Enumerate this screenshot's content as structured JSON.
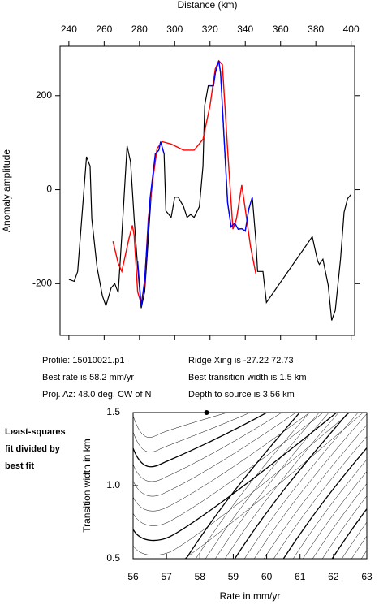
{
  "chart_data": [
    {
      "type": "line",
      "xlabel": "Distance (km)",
      "ylabel": "Anomaly amplitude",
      "xlim": [
        235,
        402
      ],
      "xticks": [
        240,
        260,
        280,
        300,
        320,
        340,
        360,
        380,
        400
      ],
      "ylim": [
        -310,
        305
      ],
      "yticks": [
        -200,
        0,
        200
      ],
      "series": [
        {
          "color": "#000000",
          "x": [
            240,
            243,
            245,
            250,
            252,
            253,
            256,
            259,
            261,
            264,
            266,
            268,
            270,
            273,
            275,
            277,
            279,
            281,
            283,
            285,
            287,
            289,
            291,
            292,
            294,
            295,
            298,
            300,
            302,
            305,
            307,
            309,
            311,
            314,
            316,
            317,
            319,
            322,
            323,
            325,
            326,
            328,
            330,
            332,
            334,
            336,
            338,
            340,
            342,
            344,
            346,
            347,
            350,
            352,
            378,
            381,
            382,
            384,
            387,
            389,
            391,
            394,
            396,
            398,
            400
          ],
          "values": [
            -191,
            -195,
            -174,
            70,
            50,
            -62,
            -165,
            -226,
            -247,
            -209,
            -200,
            -219,
            -97,
            93,
            59,
            -62,
            -165,
            -252,
            -217,
            -105,
            7,
            76,
            84,
            102,
            76,
            -45,
            -59,
            -16,
            -16,
            -36,
            -59,
            -53,
            -59,
            -36,
            50,
            179,
            221,
            221,
            248,
            274,
            248,
            110,
            -28,
            -79,
            -71,
            -84,
            -83,
            -88,
            -41,
            -16,
            -109,
            -174,
            -174,
            -240,
            -100,
            -152,
            -159,
            -148,
            -203,
            -278,
            -257,
            -148,
            -48,
            -19,
            -10
          ]
        },
        {
          "color": "#ff0000",
          "x": [
            265,
            268,
            270,
            274,
            276,
            277,
            279,
            281,
            283,
            285,
            288,
            290,
            293,
            298,
            305,
            311,
            316,
            320,
            323,
            325,
            327,
            330,
            333,
            335,
            338,
            340,
            343,
            346
          ],
          "values": [
            -110,
            -157,
            -174,
            -105,
            -76,
            -97,
            -217,
            -243,
            -200,
            -62,
            33,
            88,
            102,
            97,
            84,
            84,
            107,
            179,
            257,
            274,
            266,
            84,
            -84,
            -62,
            10,
            -41,
            -122,
            -179
          ]
        },
        {
          "color": "#0000ff",
          "x": [
            279,
            281,
            283,
            286,
            289,
            291,
            292,
            294,
            null,
            319,
            322,
            323,
            325,
            326,
            328,
            330,
            332,
            334,
            336,
            338,
            340,
            342,
            344
          ],
          "values": [
            -152,
            -248,
            -191,
            -19,
            76,
            84,
            102,
            76,
            null,
            221,
            221,
            248,
            274,
            248,
            110,
            -28,
            -79,
            -71,
            -84,
            -83,
            -88,
            -41,
            -16
          ]
        }
      ],
      "annotations": [
        "Profile: 15010021.p1",
        "Best rate is 58.2 mm/yr",
        "Proj. Az: 48.0 deg. CW of N",
        "Ridge Xing is -27.22 72.73",
        "Best transition width is 1.5 km",
        "Depth to source is   3.56 km"
      ]
    },
    {
      "type": "contour",
      "xlabel": "Rate in mm/yr",
      "ylabel": "Transition width in km",
      "xlim": [
        56,
        63
      ],
      "xticks": [
        56,
        57,
        58,
        59,
        60,
        61,
        62,
        63
      ],
      "ylim": [
        0.5,
        1.5
      ],
      "yticks": [
        0.5,
        {
          "value": 1,
          "label": "1.0"
        },
        1.5
      ],
      "x": [
        58.2
      ],
      "values": [
        1.5
      ],
      "color": "#000000",
      "annotations": [
        "Least-squares",
        "fit divided by",
        "best fit"
      ]
    }
  ]
}
